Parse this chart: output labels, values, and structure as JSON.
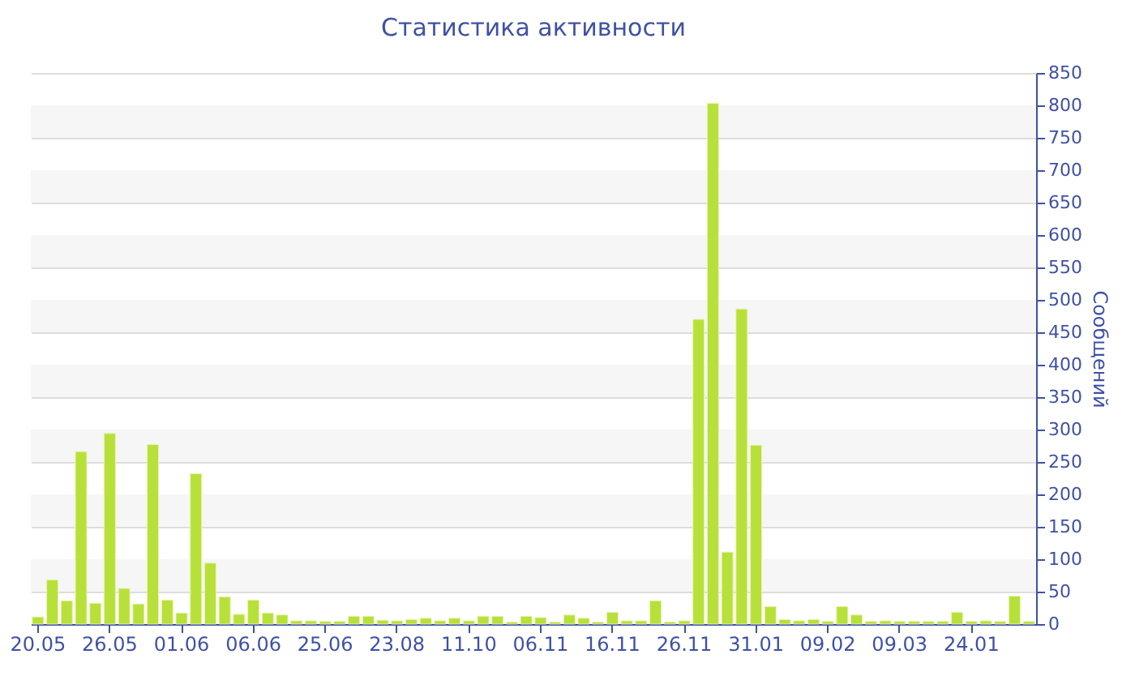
{
  "chart_data": {
    "type": "bar",
    "title": "Статистика активности",
    "ylabel": "Сообщений",
    "categories": [
      "20.05",
      null,
      null,
      null,
      null,
      "26.05",
      null,
      null,
      null,
      null,
      "01.06",
      null,
      null,
      null,
      null,
      "06.06",
      null,
      null,
      null,
      null,
      "25.06",
      null,
      null,
      null,
      null,
      "23.08",
      null,
      null,
      null,
      null,
      "11.10",
      null,
      null,
      null,
      null,
      "06.11",
      null,
      null,
      null,
      null,
      "16.11",
      null,
      null,
      null,
      null,
      "26.11",
      null,
      null,
      null,
      null,
      "31.01",
      null,
      null,
      null,
      null,
      "09.02",
      null,
      null,
      null,
      null,
      "09.03",
      null,
      null,
      null,
      null,
      "24.01",
      null,
      null,
      null,
      null
    ],
    "values": [
      11,
      68,
      36,
      266,
      32,
      294,
      55,
      31,
      277,
      37,
      17,
      232,
      94,
      42,
      15,
      37,
      17,
      14,
      5,
      5,
      4,
      4,
      12,
      12,
      6,
      5,
      7,
      9,
      5,
      9,
      5,
      12,
      12,
      3,
      12,
      10,
      3,
      14,
      9,
      3,
      18,
      5,
      5,
      36,
      3,
      5,
      470,
      803,
      111,
      486,
      276,
      27,
      7,
      5,
      7,
      4,
      27,
      14,
      4,
      5,
      4,
      4,
      4,
      4,
      18,
      4,
      5,
      4,
      43,
      4
    ],
    "color": "#b8e03a",
    "ylim": [
      0,
      850
    ],
    "yticks": [
      0,
      50,
      100,
      150,
      200,
      250,
      300,
      350,
      400,
      450,
      500,
      550,
      600,
      650,
      700,
      750,
      800,
      850
    ],
    "grid": "y"
  }
}
